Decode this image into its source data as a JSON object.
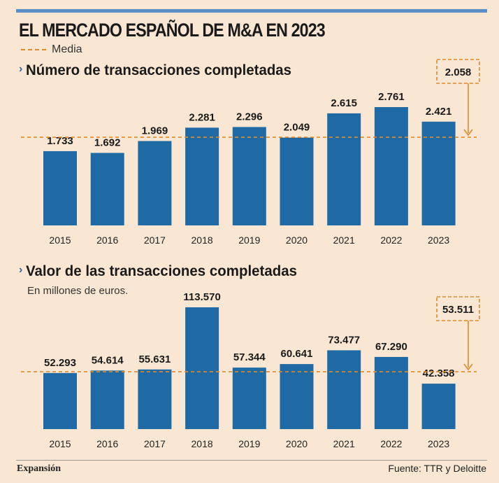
{
  "title": "EL MERCADO ESPAÑOL DE M&A EN 2023",
  "legend": {
    "label": "Media",
    "color": "#e08a2a"
  },
  "bar_color": "#1f6aa5",
  "footer": {
    "brand": "Expansión",
    "source": "Fuente: TTR y Deloitte"
  },
  "chart_data": [
    {
      "type": "bar",
      "title": "Número de transacciones completadas",
      "subtitle": "",
      "categories": [
        "2015",
        "2016",
        "2017",
        "2018",
        "2019",
        "2020",
        "2021",
        "2022",
        "2023"
      ],
      "values": [
        1733,
        1692,
        1969,
        2281,
        2296,
        2049,
        2615,
        2761,
        2421
      ],
      "value_labels": [
        "1.733",
        "1.692",
        "1.969",
        "2.281",
        "2.296",
        "2.049",
        "2.615",
        "2.761",
        "2.421"
      ],
      "mean": 2058,
      "mean_label": "2.058",
      "ylim": [
        0,
        2761
      ]
    },
    {
      "type": "bar",
      "title": "Valor de las transacciones completadas",
      "subtitle": "En millones de euros.",
      "categories": [
        "2015",
        "2016",
        "2017",
        "2018",
        "2019",
        "2020",
        "2021",
        "2022",
        "2023"
      ],
      "values": [
        52293,
        54614,
        55631,
        113570,
        57344,
        60641,
        73477,
        67290,
        42358
      ],
      "value_labels": [
        "52.293",
        "54.614",
        "55.631",
        "113.570",
        "57.344",
        "60.641",
        "73.477",
        "67.290",
        "42.358"
      ],
      "mean": 53511,
      "mean_label": "53.511",
      "ylim": [
        0,
        113570
      ]
    }
  ]
}
